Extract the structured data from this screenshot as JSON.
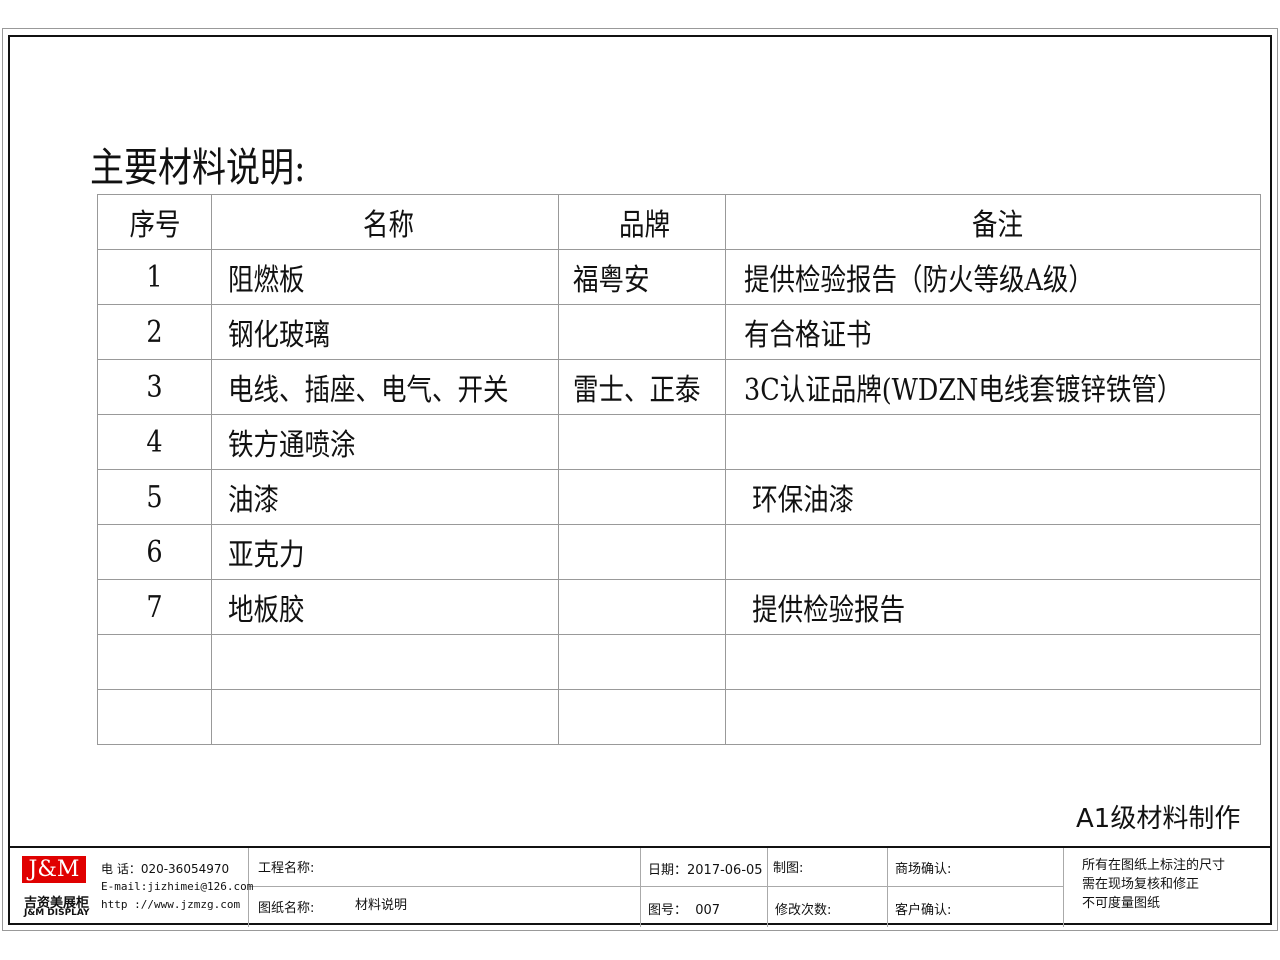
{
  "title": "主要材料说明:",
  "table": {
    "headers": [
      "序号",
      "名称",
      "品牌",
      "备注"
    ],
    "rows": [
      [
        "1",
        "阻燃板",
        "福粤安",
        "提供检验报告（防火等级A级）"
      ],
      [
        "2",
        "钢化玻璃",
        "",
        "有合格证书"
      ],
      [
        "3",
        "电线、插座、电气、开关",
        "雷士、正泰",
        "3C认证品牌(WDZN电线套镀锌铁管）"
      ],
      [
        "4",
        "铁方通喷涂",
        "",
        ""
      ],
      [
        "5",
        "油漆",
        "",
        " 环保油漆"
      ],
      [
        "6",
        "亚克力",
        "",
        ""
      ],
      [
        "7",
        "地板胶",
        "",
        " 提供检验报告"
      ],
      [
        "",
        "",
        "",
        ""
      ],
      [
        "",
        "",
        "",
        ""
      ]
    ]
  },
  "note": "A1级材料制作",
  "titleblock": {
    "logo": "J&M",
    "company_cn": "吉资美展柜",
    "company_en": "J&M DISPLAY",
    "phone": "电 话：020-36054970",
    "email": "E-mail:jizhimei@126.com",
    "web": "http ://www.jzmzg.com",
    "project_label": "工程名称:",
    "drawing_label": "图纸名称:",
    "drawing_name": "材料说明",
    "date": "日期：2017-06-05",
    "number": "图号：  007",
    "drafter": "制图:",
    "revisions": "修改次数:",
    "mall_confirm": "商场确认:",
    "client_confirm": "客户确认:",
    "disclaimer": [
      "所有在图纸上标注的尺寸",
      "需在现场复核和修正",
      "不可度量图纸"
    ],
    "logo_color": "#e00000"
  }
}
